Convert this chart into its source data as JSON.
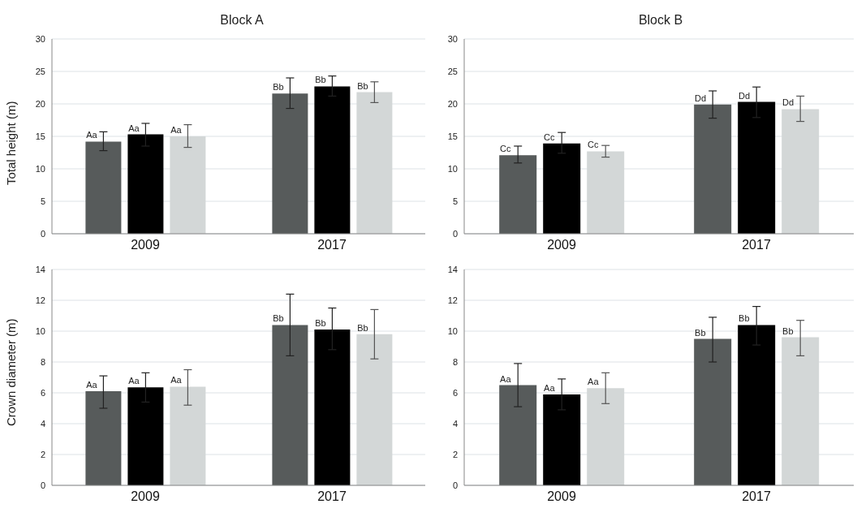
{
  "chart_data": [
    {
      "type": "bar",
      "title": "Block A",
      "ylabel": "Total height (m)",
      "categories": [
        "2009",
        "2017"
      ],
      "ylim": [
        0,
        30
      ],
      "yticks": [
        0,
        5,
        10,
        15,
        20,
        25,
        30
      ],
      "grid": "y",
      "series": [
        {
          "color": "#575b5b",
          "values": [
            14.2,
            21.6
          ],
          "errors": [
            [
              12.8,
              15.7
            ],
            [
              19.3,
              24.0
            ]
          ],
          "value_labels": [
            "Aa",
            "Bb"
          ]
        },
        {
          "color": "#000000",
          "values": [
            15.3,
            22.7
          ],
          "errors": [
            [
              13.5,
              17.0
            ],
            [
              21.2,
              24.3
            ]
          ],
          "value_labels": [
            "Aa",
            "Bb"
          ]
        },
        {
          "color": "#d3d7d7",
          "values": [
            15.0,
            21.8
          ],
          "errors": [
            [
              13.3,
              16.8
            ],
            [
              20.2,
              23.4
            ]
          ],
          "value_labels": [
            "Aa",
            "Bb"
          ]
        }
      ]
    },
    {
      "type": "bar",
      "title": "Block B",
      "categories": [
        "2009",
        "2017"
      ],
      "ylim": [
        0,
        30
      ],
      "yticks": [
        0,
        5,
        10,
        15,
        20,
        25,
        30
      ],
      "grid": "y",
      "series": [
        {
          "color": "#575b5b",
          "values": [
            12.1,
            19.9
          ],
          "errors": [
            [
              10.9,
              13.5
            ],
            [
              17.8,
              22.0
            ]
          ],
          "value_labels": [
            "Cc",
            "Dd"
          ]
        },
        {
          "color": "#000000",
          "values": [
            13.9,
            20.3
          ],
          "errors": [
            [
              12.4,
              15.6
            ],
            [
              17.9,
              22.6
            ]
          ],
          "value_labels": [
            "Cc",
            "Dd"
          ]
        },
        {
          "color": "#d3d7d7",
          "values": [
            12.7,
            19.2
          ],
          "errors": [
            [
              11.8,
              13.6
            ],
            [
              17.3,
              21.2
            ]
          ],
          "value_labels": [
            "Cc",
            "Dd"
          ]
        }
      ]
    },
    {
      "type": "bar",
      "ylabel": "Crown diameter (m)",
      "categories": [
        "2009",
        "2017"
      ],
      "ylim": [
        0,
        14
      ],
      "yticks": [
        0,
        2,
        4,
        6,
        8,
        10,
        12,
        14
      ],
      "grid": "y",
      "series": [
        {
          "color": "#575b5b",
          "values": [
            6.1,
            10.4
          ],
          "errors": [
            [
              5.0,
              7.1
            ],
            [
              8.4,
              12.4
            ]
          ],
          "value_labels": [
            "Aa",
            "Bb"
          ]
        },
        {
          "color": "#000000",
          "values": [
            6.35,
            10.1
          ],
          "errors": [
            [
              5.4,
              7.3
            ],
            [
              8.8,
              11.5
            ]
          ],
          "value_labels": [
            "Aa",
            "Bb"
          ]
        },
        {
          "color": "#d3d7d7",
          "values": [
            6.4,
            9.8
          ],
          "errors": [
            [
              5.2,
              7.5
            ],
            [
              8.2,
              11.4
            ]
          ],
          "value_labels": [
            "Aa",
            "Bb"
          ]
        }
      ]
    },
    {
      "type": "bar",
      "categories": [
        "2009",
        "2017"
      ],
      "ylim": [
        0,
        14
      ],
      "yticks": [
        0,
        2,
        4,
        6,
        8,
        10,
        12,
        14
      ],
      "grid": "y",
      "series": [
        {
          "color": "#575b5b",
          "values": [
            6.5,
            9.5
          ],
          "errors": [
            [
              5.1,
              7.9
            ],
            [
              8.0,
              10.9
            ]
          ],
          "value_labels": [
            "Aa",
            "Bb"
          ]
        },
        {
          "color": "#000000",
          "values": [
            5.9,
            10.4
          ],
          "errors": [
            [
              4.9,
              6.9
            ],
            [
              9.1,
              11.6
            ]
          ],
          "value_labels": [
            "Aa",
            "Bb"
          ]
        },
        {
          "color": "#d3d7d7",
          "values": [
            6.3,
            9.6
          ],
          "errors": [
            [
              5.3,
              7.3
            ],
            [
              8.4,
              10.7
            ]
          ],
          "value_labels": [
            "Aa",
            "Bb"
          ]
        }
      ]
    }
  ]
}
